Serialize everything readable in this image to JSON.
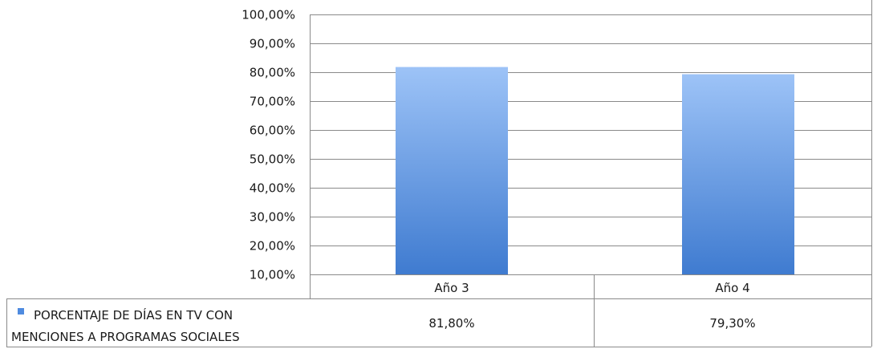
{
  "chart_data": {
    "type": "bar",
    "categories": [
      "Año 3",
      "Año 4"
    ],
    "series": [
      {
        "name_lines": [
          "PORCENTAJE DE DÍAS EN TV CON",
          "MENCIONES A PROGRAMAS SOCIALES"
        ],
        "values": [
          81.8,
          79.3
        ],
        "value_labels": [
          "81,80%",
          "79,30%"
        ],
        "color_top": "#9dc3f7",
        "color_bottom": "#3f7bd0"
      }
    ],
    "ylim": [
      10,
      100
    ],
    "yticks": [
      100,
      90,
      80,
      70,
      60,
      50,
      40,
      30,
      20,
      10
    ],
    "ytick_labels": [
      "100,00%",
      "90,00%",
      "80,00%",
      "70,00%",
      "60,00%",
      "50,00%",
      "40,00%",
      "30,00%",
      "20,00%",
      "10,00%"
    ],
    "grid": true,
    "data_table": true,
    "legend_marker_color": "#4f8be0"
  }
}
